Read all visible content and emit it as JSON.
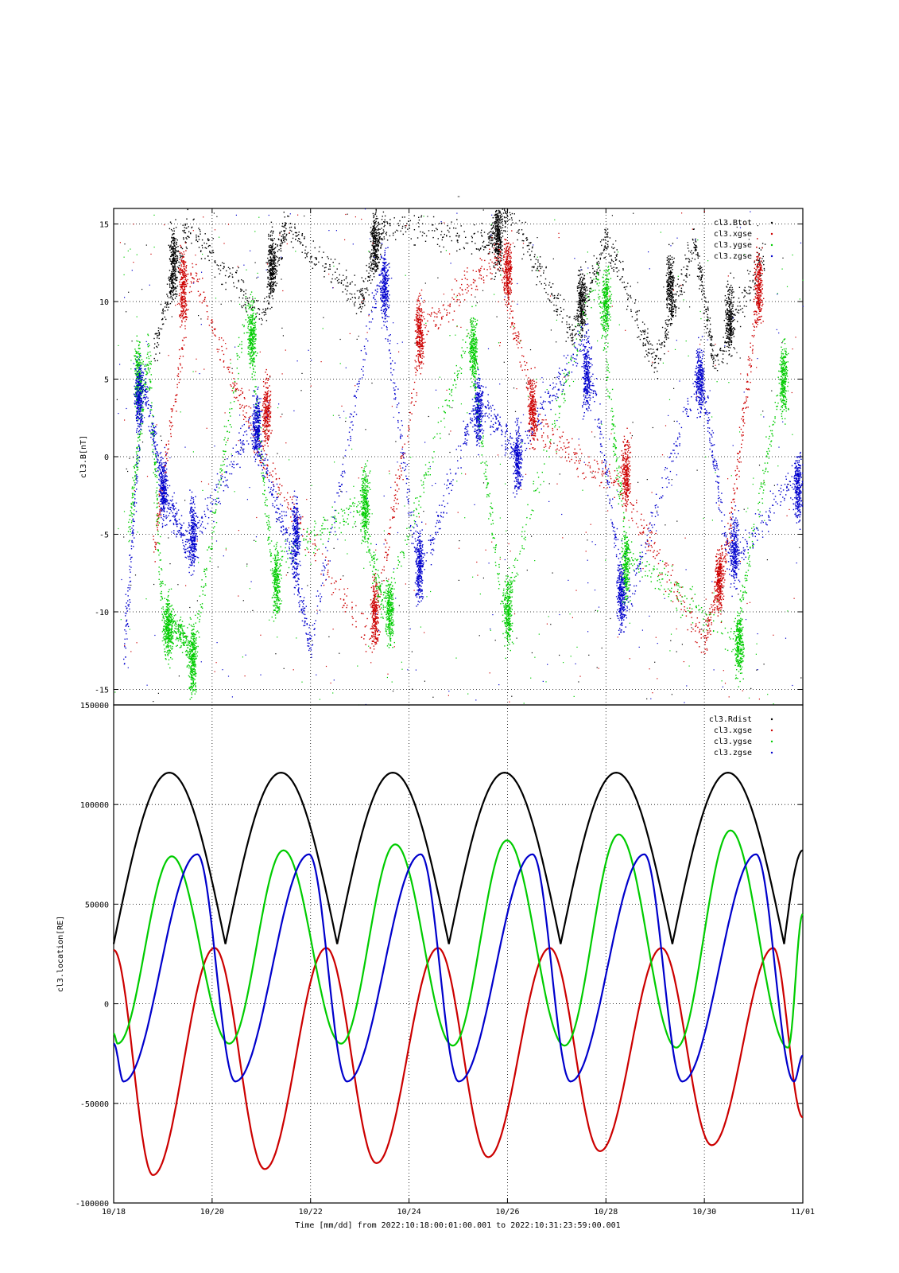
{
  "figure": {
    "title": "-",
    "xlabel": "Time [mm/dd]  from 2022:10:18:00:01:00.001  to  2022:10:31:23:59:00.001"
  },
  "chart_data": [
    {
      "type": "scatter",
      "ylabel": "cl3.B[nT]",
      "ylim": [
        -16,
        16
      ],
      "yticks": [
        -15,
        -10,
        -5,
        0,
        5,
        10,
        15
      ],
      "xlim": [
        0,
        14
      ],
      "grid": true,
      "legend": "top-right",
      "series": [
        {
          "name": "cl3.Btot",
          "color": "#000000",
          "centers": [
            [
              1.2,
              12.5
            ],
            [
              3.2,
              12.5
            ],
            [
              5.3,
              14
            ],
            [
              7.8,
              14
            ],
            [
              9.5,
              10
            ],
            [
              11.3,
              11
            ],
            [
              12.5,
              9
            ]
          ],
          "x": [
            0.83,
            1.5,
            3.0,
            3.5,
            5.0,
            5.5,
            7.6,
            8.0,
            9.3,
            10.0,
            11.0,
            11.8,
            12.2,
            13.2
          ],
          "y": [
            7,
            15,
            9,
            15,
            10,
            15,
            14,
            16,
            8,
            14,
            6,
            14,
            6,
            13
          ]
        },
        {
          "name": "cl3.xgse",
          "color": "#cc0000",
          "centers": [
            [
              1.4,
              11
            ],
            [
              3.1,
              3
            ],
            [
              5.3,
              -10
            ],
            [
              6.2,
              8
            ],
            [
              8.0,
              12
            ],
            [
              8.5,
              3
            ],
            [
              10.4,
              -1
            ],
            [
              12.3,
              -8
            ],
            [
              13.1,
              11
            ]
          ],
          "x": [
            0.8,
            1.6,
            3.0,
            5.2,
            6.3,
            7.8,
            8.6,
            10.3,
            12.0,
            12.5,
            13.1
          ],
          "y": [
            -6,
            12,
            0,
            -12,
            8,
            13,
            2,
            -2,
            -12,
            -5,
            11
          ]
        },
        {
          "name": "cl3.ygse",
          "color": "#00cc00",
          "centers": [
            [
              0.5,
              5
            ],
            [
              1.1,
              -11
            ],
            [
              1.6,
              -13
            ],
            [
              2.8,
              8
            ],
            [
              3.3,
              -8
            ],
            [
              5.1,
              -3
            ],
            [
              5.6,
              -10
            ],
            [
              7.3,
              7
            ],
            [
              8.0,
              -10
            ],
            [
              10.0,
              10
            ],
            [
              10.4,
              -7
            ],
            [
              12.7,
              -12
            ],
            [
              13.6,
              5
            ]
          ],
          "x": [
            0.3,
            0.7,
            1.0,
            1.3,
            1.6,
            2.7,
            3.2,
            5.0,
            5.5,
            7.2,
            7.9,
            9.8,
            10.4,
            12.6,
            13.6
          ],
          "y": [
            -5,
            7,
            -11,
            -11,
            -13,
            10,
            -7,
            -3,
            -10,
            8,
            -10,
            12,
            -6,
            -12,
            6
          ]
        },
        {
          "name": "cl3.zgse",
          "color": "#0000cc",
          "centers": [
            [
              0.5,
              4
            ],
            [
              1.0,
              -2
            ],
            [
              1.6,
              -5
            ],
            [
              2.9,
              2
            ],
            [
              3.7,
              -5
            ],
            [
              5.5,
              11
            ],
            [
              6.2,
              -7
            ],
            [
              7.4,
              3
            ],
            [
              8.2,
              0
            ],
            [
              9.6,
              5
            ],
            [
              10.3,
              -9
            ],
            [
              11.9,
              5
            ],
            [
              12.6,
              -6
            ],
            [
              13.9,
              -2
            ]
          ],
          "x": [
            0.2,
            0.6,
            1.0,
            1.5,
            2.8,
            3.5,
            4.0,
            5.4,
            6.2,
            7.4,
            8.2,
            9.6,
            10.4,
            11.9,
            12.5,
            13.9
          ],
          "y": [
            -13,
            5,
            -2,
            -6,
            2,
            -5,
            -12,
            12,
            -8,
            4,
            0,
            8,
            -10,
            6,
            -7,
            -1
          ]
        }
      ]
    },
    {
      "type": "line",
      "ylabel": "cl3.location[RE]",
      "ylim": [
        -100000,
        150000
      ],
      "yticks": [
        -100000,
        -50000,
        0,
        50000,
        100000,
        150000
      ],
      "xlim": [
        0,
        14
      ],
      "xticks": [
        0,
        2,
        4,
        6,
        8,
        10,
        12,
        14
      ],
      "xticklabels": [
        "10/18",
        "10/20",
        "10/22",
        "10/24",
        "10/26",
        "10/28",
        "10/30",
        "11/01"
      ],
      "grid": true,
      "legend": "top-right",
      "period_days": 2.27,
      "series": [
        {
          "name": "cl3.Rdist",
          "color": "#000000",
          "x": [
            0,
            1.13,
            2.27,
            3.4,
            4.54,
            5.67,
            6.81,
            7.94,
            9.08,
            10.21,
            11.35,
            12.48,
            13.62,
            14
          ],
          "y": [
            30000,
            116000,
            30000,
            116000,
            30000,
            116000,
            30000,
            116000,
            30000,
            116000,
            30000,
            116000,
            30000,
            77000
          ]
        },
        {
          "name": "cl3.xgse",
          "color": "#cc0000",
          "x": [
            0,
            0.8,
            2.05,
            3.07,
            4.32,
            5.34,
            6.59,
            7.61,
            8.86,
            9.88,
            11.13,
            12.15,
            13.4,
            14
          ],
          "y": [
            27000,
            -86000,
            28000,
            -83000,
            28000,
            -80000,
            28000,
            -77000,
            28000,
            -74000,
            28000,
            -71000,
            28000,
            -57000
          ]
        },
        {
          "name": "cl3.ygse",
          "color": "#00cc00",
          "x": [
            0,
            0.08,
            1.18,
            2.35,
            3.45,
            4.62,
            5.72,
            6.89,
            7.99,
            9.16,
            10.26,
            11.43,
            12.53,
            13.7,
            14
          ],
          "y": [
            -15000,
            -20000,
            74000,
            -20000,
            77000,
            -20000,
            80000,
            -21000,
            82000,
            -21000,
            85000,
            -22000,
            87000,
            -22000,
            45000
          ]
        },
        {
          "name": "cl3.zgse",
          "color": "#0000cc",
          "x": [
            0,
            0.2,
            1.7,
            2.47,
            3.97,
            4.74,
            6.24,
            7.01,
            8.51,
            9.28,
            10.78,
            11.55,
            13.05,
            13.82,
            14
          ],
          "y": [
            -20000,
            -39000,
            75000,
            -39000,
            75000,
            -39000,
            75000,
            -39000,
            75000,
            -39000,
            75000,
            -39000,
            75000,
            -39000,
            -26000
          ]
        }
      ]
    }
  ]
}
